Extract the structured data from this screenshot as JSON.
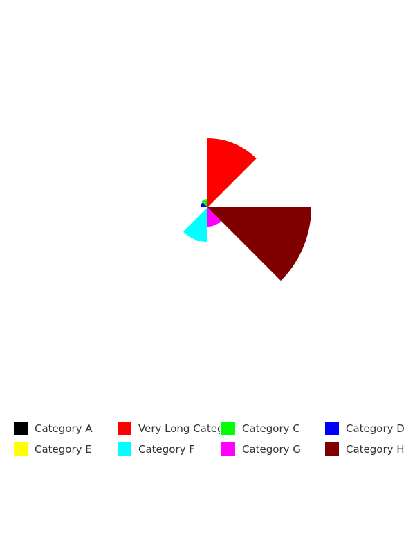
{
  "chart_data": {
    "type": "pie",
    "variant": "polar-area",
    "title": "",
    "categories": [
      "Category A",
      "Very Long Category Name B",
      "Category C",
      "Category D",
      "Category E",
      "Category F",
      "Category G",
      "Category H"
    ],
    "values": [
      2,
      100,
      12,
      10,
      0,
      50,
      28,
      150
    ],
    "colors": [
      "#000000",
      "#ff0000",
      "#00ff00",
      "#0000ff",
      "#ffff00",
      "#00ffff",
      "#ff00ff",
      "#800000"
    ],
    "legend_position": "bottom",
    "grid": false
  }
}
